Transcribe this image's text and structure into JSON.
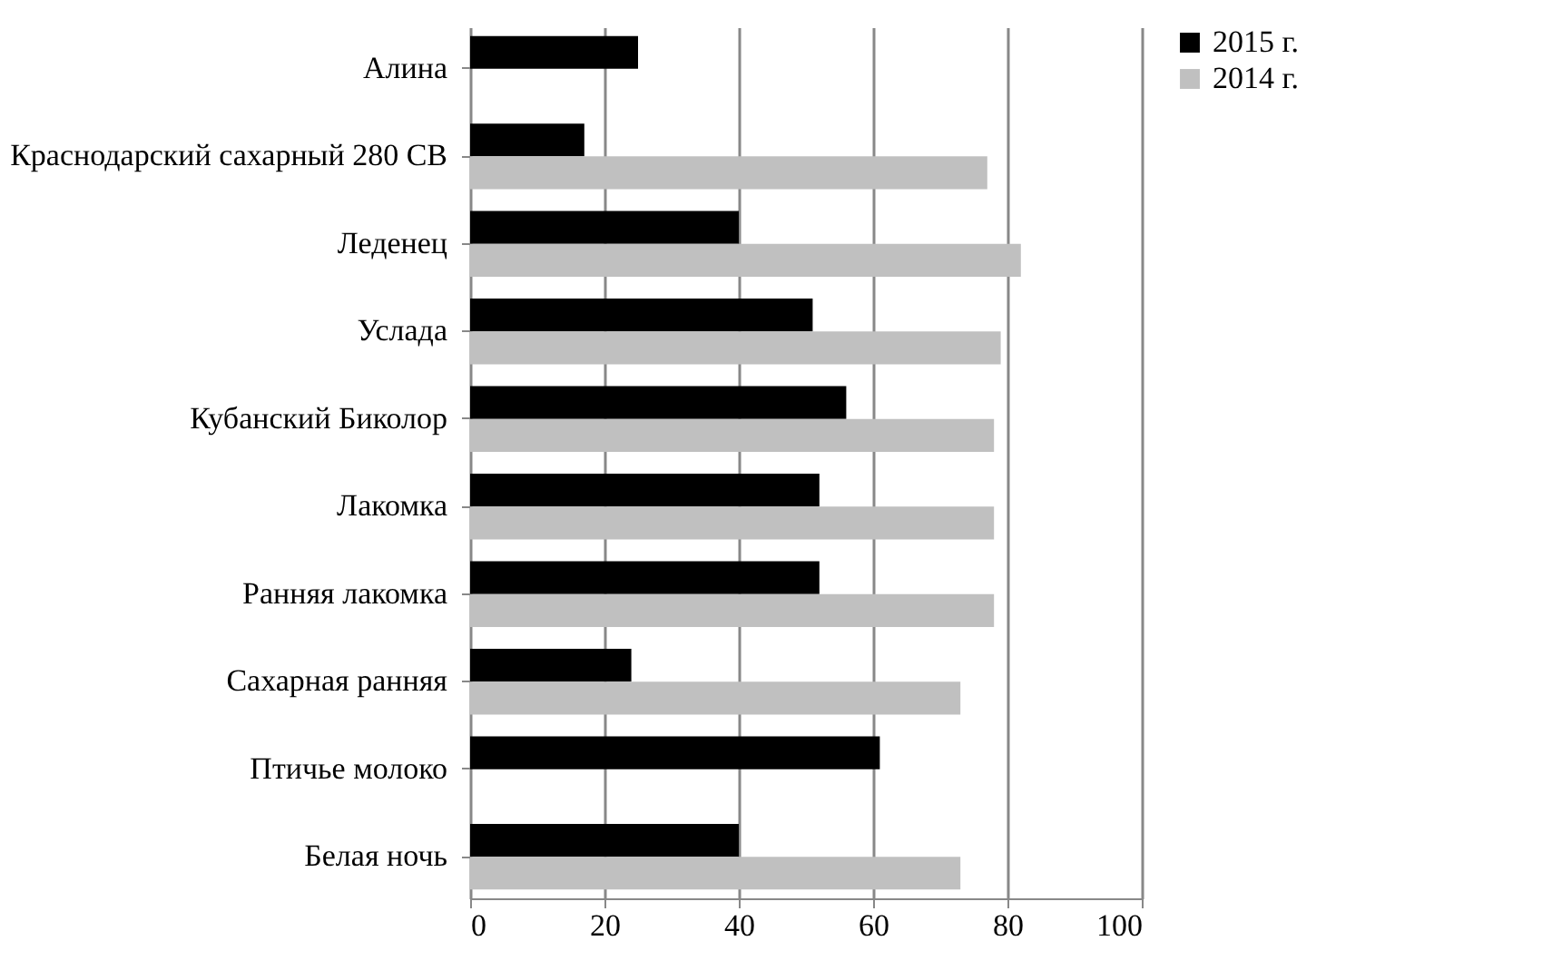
{
  "chart_data": {
    "type": "bar",
    "orientation": "horizontal",
    "categories": [
      "Алина",
      "Краснодарский сахарный 280 СВ",
      "Леденец",
      "Услада",
      "Кубанский Биколор",
      "Лакомка",
      "Ранняя лакомка",
      "Сахарная ранняя",
      "Птичье молоко",
      "Белая ночь"
    ],
    "series": [
      {
        "name": "2015 г.",
        "color": "#000000",
        "values": [
          25,
          17,
          40,
          51,
          56,
          52,
          52,
          24,
          61,
          40
        ]
      },
      {
        "name": "2014 г.",
        "color": "#c0c0c0",
        "values": [
          0,
          77,
          82,
          79,
          78,
          78,
          78,
          73,
          0,
          73
        ]
      }
    ],
    "xlim": [
      0,
      100
    ],
    "xticks": [
      0,
      20,
      40,
      60,
      80,
      100
    ],
    "grid": "x",
    "legend": "right"
  }
}
